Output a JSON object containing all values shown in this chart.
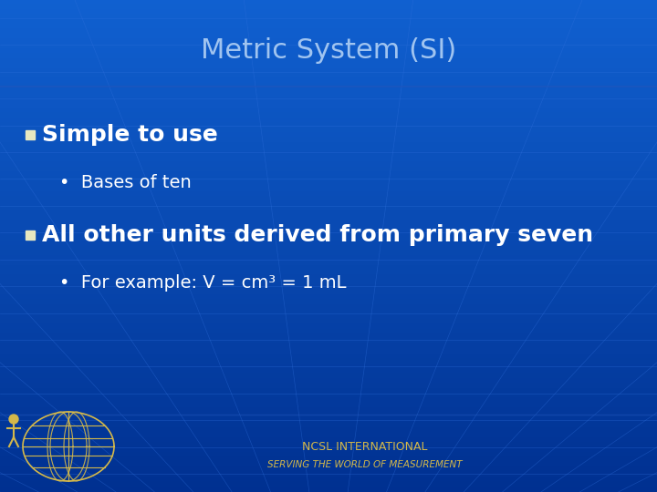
{
  "title": "Metric System (SI)",
  "title_color": "#a0c4f0",
  "title_fontsize": 22,
  "bg_color": "#1060d0",
  "bg_color_dark": "#0040a0",
  "bullet1": "Simple to use",
  "subbullet1": "Bases of ten",
  "bullet2": "All other units derived from primary seven",
  "subbullet2": "For example: V = cm³ = 1 mL",
  "bullet_color": "#ffffff",
  "bullet_marker_color": "#e8e8c0",
  "subbullet_color": "#ffffff",
  "footer_main": "NCSL INTERNATIONAL",
  "footer_sub": "SERVING THE WORLD OF MEASUREMENT",
  "footer_color": "#d4b84a",
  "grid_color": "#3070dd",
  "bullet_fontsize": 18,
  "subbullet_fontsize": 14,
  "footer_main_fontsize": 9,
  "footer_sub_fontsize": 7.5
}
